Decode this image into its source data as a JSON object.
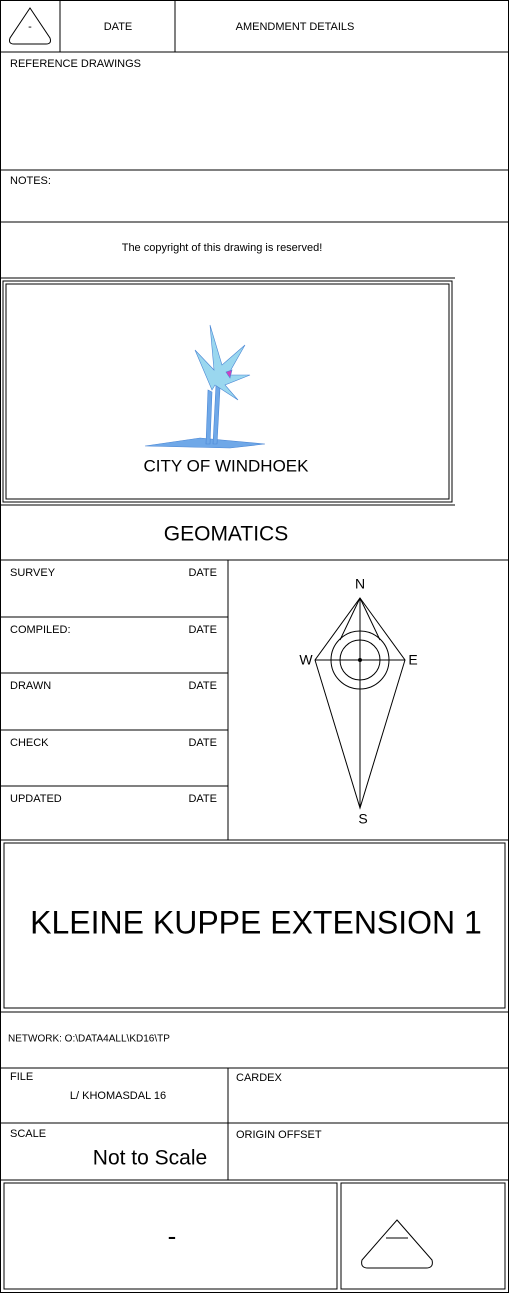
{
  "header": {
    "triangle_label": "-",
    "date": "DATE",
    "amendment": "AMENDMENT DETAILS"
  },
  "reference_drawings": "REFERENCE DRAWINGS",
  "notes": "NOTES:",
  "copyright": "The copyright of this drawing is reserved!",
  "logo_text": "CITY OF WINDHOEK",
  "department": "GEOMATICS",
  "signoffs": [
    {
      "label": "SURVEY",
      "date": "DATE"
    },
    {
      "label": "COMPILED:",
      "date": "DATE"
    },
    {
      "label": "DRAWN",
      "date": "DATE"
    },
    {
      "label": "CHECK",
      "date": "DATE"
    },
    {
      "label": "UPDATED",
      "date": "DATE"
    }
  ],
  "compass": {
    "n": "N",
    "e": "E",
    "s": "S",
    "w": "W"
  },
  "title": "KLEINE KUPPE EXTENSION 1",
  "network": "NETWORK:  O:\\DATA4ALL\\KD16\\TP",
  "file_label": "FILE",
  "file_value": "L/ KHOMASDAL 16",
  "cardex": "CARDEX",
  "scale_label": "SCALE",
  "scale_value": "Not to Scale",
  "origin_offset": "ORIGIN OFFSET",
  "bottom_label": "-"
}
